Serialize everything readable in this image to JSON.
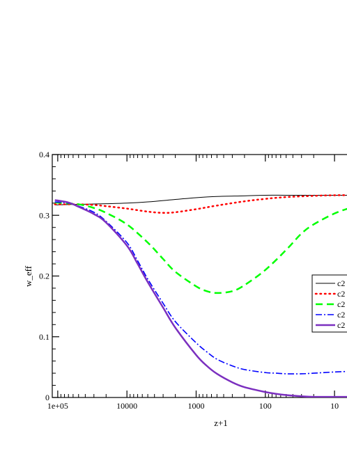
{
  "chart_data": {
    "type": "line",
    "title": "",
    "xlabel": "z+1",
    "ylabel": "w_eff",
    "xscale": "log",
    "xlim": [
      120000,
      5
    ],
    "ylim": [
      0,
      0.4
    ],
    "x_ticks": [
      {
        "value": 100000,
        "label": "1e+05"
      },
      {
        "value": 10000,
        "label": "10000"
      },
      {
        "value": 1000,
        "label": "1000"
      },
      {
        "value": 100,
        "label": "100"
      },
      {
        "value": 10,
        "label": "10"
      }
    ],
    "y_ticks": [
      {
        "value": 0,
        "label": "0"
      },
      {
        "value": 0.1,
        "label": "0.1"
      },
      {
        "value": 0.2,
        "label": "0.2"
      },
      {
        "value": 0.3,
        "label": "0.3"
      },
      {
        "value": 0.4,
        "label": "0.4"
      }
    ],
    "grid": false,
    "legend": {
      "placement": "right",
      "visible_text": [
        "c2",
        "c2",
        "c2",
        "c2",
        "c2"
      ]
    },
    "series": [
      {
        "style": "solid-thin",
        "color": "#000000",
        "points": [
          [
            110000,
            0.317
          ],
          [
            50000,
            0.318
          ],
          [
            20000,
            0.319
          ],
          [
            10000,
            0.32
          ],
          [
            5000,
            0.322
          ],
          [
            2000,
            0.326
          ],
          [
            1000,
            0.329
          ],
          [
            500,
            0.331
          ],
          [
            200,
            0.332
          ],
          [
            100,
            0.333
          ],
          [
            50,
            0.333
          ],
          [
            20,
            0.333
          ],
          [
            10,
            0.333
          ],
          [
            6,
            0.333
          ]
        ]
      },
      {
        "style": "dotted",
        "color": "#ff0000",
        "points": [
          [
            110000,
            0.318
          ],
          [
            50000,
            0.318
          ],
          [
            30000,
            0.317
          ],
          [
            20000,
            0.315
          ],
          [
            10000,
            0.311
          ],
          [
            5000,
            0.306
          ],
          [
            3000,
            0.304
          ],
          [
            2000,
            0.305
          ],
          [
            1000,
            0.31
          ],
          [
            500,
            0.316
          ],
          [
            200,
            0.323
          ],
          [
            100,
            0.327
          ],
          [
            50,
            0.33
          ],
          [
            20,
            0.332
          ],
          [
            10,
            0.333
          ],
          [
            6,
            0.333
          ]
        ]
      },
      {
        "style": "dashed",
        "color": "#00ff00",
        "points": [
          [
            110000,
            0.321
          ],
          [
            50000,
            0.318
          ],
          [
            30000,
            0.312
          ],
          [
            20000,
            0.304
          ],
          [
            10000,
            0.285
          ],
          [
            5000,
            0.255
          ],
          [
            3000,
            0.228
          ],
          [
            2000,
            0.207
          ],
          [
            1000,
            0.183
          ],
          [
            700,
            0.175
          ],
          [
            500,
            0.172
          ],
          [
            300,
            0.175
          ],
          [
            200,
            0.185
          ],
          [
            100,
            0.21
          ],
          [
            50,
            0.243
          ],
          [
            30,
            0.27
          ],
          [
            20,
            0.285
          ],
          [
            10,
            0.303
          ],
          [
            6,
            0.312
          ]
        ]
      },
      {
        "style": "dash-dot",
        "color": "#0000ff",
        "points": [
          [
            110000,
            0.322
          ],
          [
            70000,
            0.32
          ],
          [
            50000,
            0.315
          ],
          [
            30000,
            0.305
          ],
          [
            20000,
            0.29
          ],
          [
            10000,
            0.255
          ],
          [
            7000,
            0.225
          ],
          [
            5000,
            0.195
          ],
          [
            3000,
            0.155
          ],
          [
            2000,
            0.125
          ],
          [
            1000,
            0.09
          ],
          [
            700,
            0.075
          ],
          [
            500,
            0.063
          ],
          [
            300,
            0.052
          ],
          [
            200,
            0.046
          ],
          [
            100,
            0.041
          ],
          [
            70,
            0.04
          ],
          [
            50,
            0.039
          ],
          [
            30,
            0.039
          ],
          [
            20,
            0.04
          ],
          [
            10,
            0.042
          ],
          [
            6,
            0.043
          ]
        ]
      },
      {
        "style": "solid-thick",
        "color": "#7b2fbf",
        "points": [
          [
            110000,
            0.325
          ],
          [
            70000,
            0.321
          ],
          [
            50000,
            0.314
          ],
          [
            30000,
            0.302
          ],
          [
            20000,
            0.288
          ],
          [
            10000,
            0.25
          ],
          [
            7000,
            0.22
          ],
          [
            5000,
            0.19
          ],
          [
            3000,
            0.148
          ],
          [
            2000,
            0.115
          ],
          [
            1000,
            0.07
          ],
          [
            700,
            0.052
          ],
          [
            500,
            0.039
          ],
          [
            300,
            0.025
          ],
          [
            200,
            0.017
          ],
          [
            100,
            0.009
          ],
          [
            70,
            0.006
          ],
          [
            50,
            0.004
          ],
          [
            30,
            0.002
          ],
          [
            20,
            0.001
          ],
          [
            10,
            0.001
          ],
          [
            6,
            0.001
          ]
        ]
      }
    ]
  }
}
